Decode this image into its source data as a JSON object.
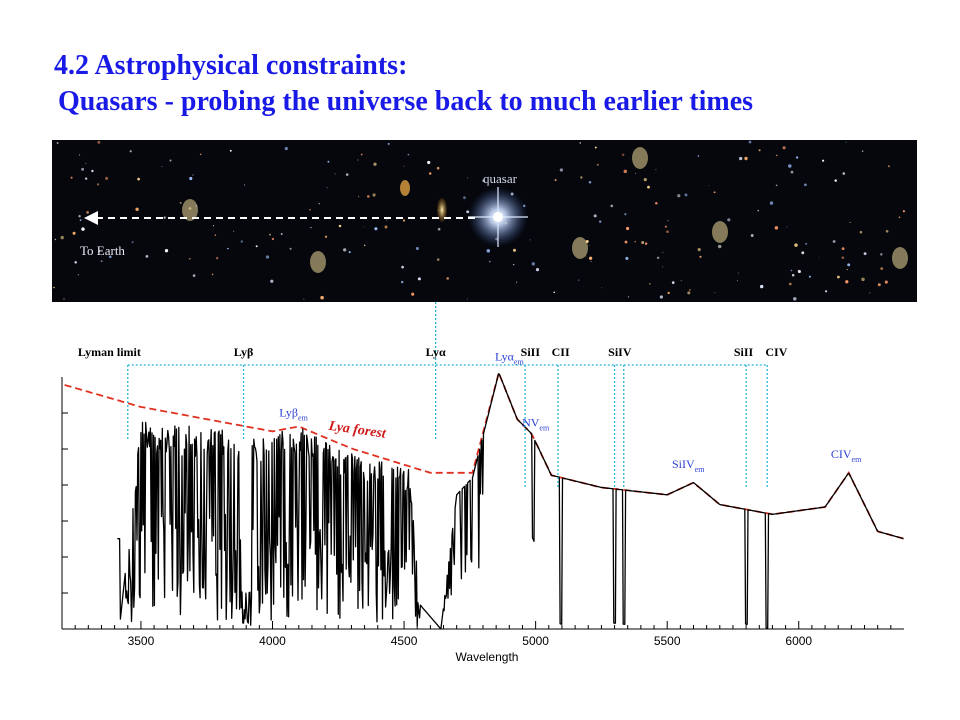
{
  "title": {
    "line1": "4.2  Astrophysical constraints:",
    "line2": "Quasars - probing the universe back to much earlier times"
  },
  "sky_image": {
    "quasar_label": "quasar",
    "earth_label": "To Earth"
  },
  "colors": {
    "title": "#1a1ae6",
    "spectrum": "#000000",
    "continuum": "#e03020",
    "line_markers": "#29b6d6",
    "emission_labels": "#2a3fd4",
    "forest_label": "#d01818",
    "sky_background": "#05070c"
  },
  "chart_data": {
    "type": "line",
    "title": "",
    "xlabel": "Wavelength",
    "ylabel": "",
    "xlim": [
      3200,
      6400
    ],
    "ylim": [
      0,
      1.0
    ],
    "xticks": [
      3500,
      4000,
      4500,
      5000,
      5500,
      6000
    ],
    "tick_labels": [
      "3500",
      "4000",
      "4500",
      "5000",
      "5500",
      "6000"
    ],
    "absorption_lines": [
      {
        "label": "Lyman limit",
        "x": 3450
      },
      {
        "label": "Lyβ",
        "x": 3890
      },
      {
        "label": "Lyα",
        "x": 4620
      },
      {
        "label": "SiII",
        "x": 4960
      },
      {
        "label": "CII",
        "x": 5085
      },
      {
        "label": "SiIV",
        "x": 5300
      },
      {
        "label": "SiIV",
        "x": 5335
      },
      {
        "label": "SiII",
        "x": 5800
      },
      {
        "label": "CIV",
        "x": 5880
      }
    ],
    "top_labels": [
      {
        "text": "Lyman limit",
        "x": 3380
      },
      {
        "text": "Lyβ",
        "x": 3890
      },
      {
        "text": "Lyα",
        "x": 4620
      },
      {
        "text": "SiII",
        "x": 4980
      },
      {
        "text": "CII",
        "x": 5095
      },
      {
        "text": "SiIV",
        "x": 5320
      },
      {
        "text": "SiII",
        "x": 5790
      },
      {
        "text": "CIV",
        "x": 5915
      }
    ],
    "emission_labels": [
      {
        "base": "Lyβ",
        "sub": "em",
        "x": 4080,
        "y": 0.87
      },
      {
        "base": "Lyα",
        "sub": "em",
        "x": 4900,
        "y": 1.1
      },
      {
        "base": "NV",
        "sub": "em",
        "x": 5000,
        "y": 0.83
      },
      {
        "base": "SiIV",
        "sub": "em",
        "x": 5580,
        "y": 0.66
      },
      {
        "base": "CIV",
        "sub": "em",
        "x": 6180,
        "y": 0.7
      }
    ],
    "forest_label": {
      "text": "Lya forest",
      "x": 4320,
      "y": 0.8
    },
    "continuum_model": [
      [
        3210,
        1.0
      ],
      [
        3500,
        0.91
      ],
      [
        4000,
        0.81
      ],
      [
        4100,
        0.83
      ],
      [
        4300,
        0.74
      ],
      [
        4600,
        0.64
      ],
      [
        4760,
        0.64
      ],
      [
        4860,
        1.05
      ],
      [
        4930,
        0.86
      ],
      [
        4985,
        0.8
      ],
      [
        5060,
        0.63
      ],
      [
        5250,
        0.58
      ],
      [
        5500,
        0.55
      ],
      [
        5600,
        0.6
      ],
      [
        5700,
        0.51
      ],
      [
        5900,
        0.47
      ],
      [
        6100,
        0.5
      ],
      [
        6190,
        0.64
      ],
      [
        6300,
        0.4
      ],
      [
        6400,
        0.37
      ]
    ],
    "spectrum_model": [
      [
        3420,
        0.02
      ],
      [
        3500,
        0.85
      ],
      [
        3600,
        0.84
      ],
      [
        3800,
        0.82
      ],
      [
        3920,
        0.78
      ],
      [
        4000,
        0.8
      ],
      [
        4100,
        0.83
      ],
      [
        4300,
        0.72
      ],
      [
        4520,
        0.66
      ],
      [
        4560,
        0.1
      ],
      [
        4640,
        0.0
      ],
      [
        4700,
        0.55
      ],
      [
        4760,
        0.62
      ],
      [
        4860,
        1.05
      ],
      [
        4930,
        0.86
      ],
      [
        4985,
        0.8
      ],
      [
        5060,
        0.63
      ],
      [
        5250,
        0.58
      ],
      [
        5500,
        0.55
      ],
      [
        5600,
        0.6
      ],
      [
        5700,
        0.51
      ],
      [
        5900,
        0.47
      ],
      [
        6100,
        0.5
      ],
      [
        6190,
        0.64
      ],
      [
        6300,
        0.4
      ],
      [
        6400,
        0.37
      ]
    ]
  }
}
